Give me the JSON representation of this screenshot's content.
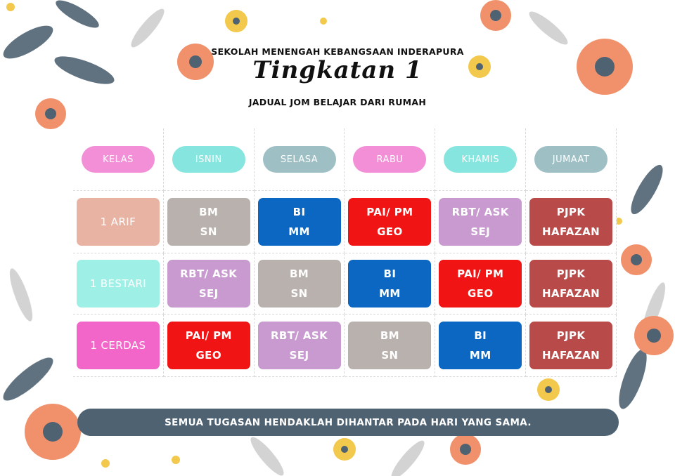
{
  "header": {
    "school": "SEKOLAH MENENGAH KEBANGSAAN INDERAPURA",
    "title": "Tingkatan 1",
    "subtitle": "JADUAL JOM BELAJAR DARI RUMAH"
  },
  "table": {
    "columns": [
      "KELAS",
      "ISNIN",
      "SELASA",
      "RABU",
      "KHAMIS",
      "JUMAAT"
    ],
    "rows": [
      [
        [
          "1 ARIF"
        ],
        [
          "BM",
          "SN"
        ],
        [
          "BI",
          "MM"
        ],
        [
          "PAI/ PM",
          "GEO"
        ],
        [
          "RBT/ ASK",
          "SEJ"
        ],
        [
          "PJPK",
          "HAFAZAN"
        ]
      ],
      [
        [
          "1 BESTARI"
        ],
        [
          "RBT/ ASK",
          "SEJ"
        ],
        [
          "BM",
          "SN"
        ],
        [
          "BI",
          "MM"
        ],
        [
          "PAI/ PM",
          "GEO"
        ],
        [
          "PJPK",
          "HAFAZAN"
        ]
      ],
      [
        [
          "1 CERDAS"
        ],
        [
          "PAI/ PM",
          "GEO"
        ],
        [
          "RBT/ ASK",
          "SEJ"
        ],
        [
          "BM",
          "SN"
        ],
        [
          "BI",
          "MM"
        ],
        [
          "PJPK",
          "HAFAZAN"
        ]
      ]
    ]
  },
  "footer": "SEMUA TUGASAN HENDAKLAH DIHANTAR PADA HARI YANG SAMA."
}
